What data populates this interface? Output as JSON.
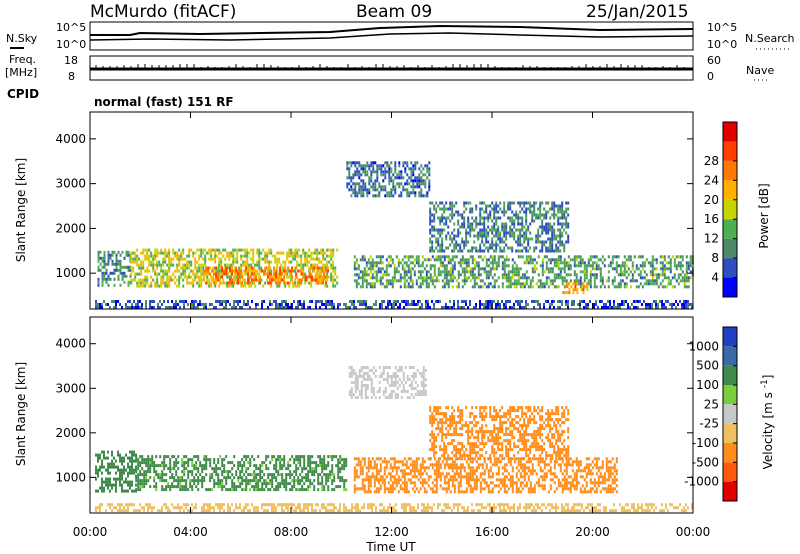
{
  "header": {
    "station": "McMurdo (fitACF)",
    "beam": "Beam 09",
    "date": "25/Jan/2015"
  },
  "top_panels": {
    "nsky_label": "N.Sky",
    "nsky_ticks": [
      "10^5",
      "10^0"
    ],
    "nsearch_label": "N.Search",
    "nsearch_ticks": [
      "10^5",
      "10^0"
    ],
    "freq_label_line1": "Freq.",
    "freq_label_line2": "[MHz]",
    "freq_ticks": [
      "18",
      "8"
    ],
    "nave_label": "Nave",
    "nave_ticks": [
      "60",
      "0"
    ],
    "cpid_label": "CPID",
    "cpid_text": "normal (fast) 151 RF"
  },
  "colors": {
    "power_scale": [
      "#0000ff",
      "#2f4ec0",
      "#4d8a68",
      "#4caf50",
      "#c8d400",
      "#ffb000",
      "#ff7a00",
      "#ff4000",
      "#e00000"
    ],
    "velocity_scale": [
      "#2040c0",
      "#3a6aa8",
      "#3f8a4a",
      "#7ccd3c",
      "#c8c8c8",
      "#f0c060",
      "#ff8c1a",
      "#ff5a10",
      "#e00000"
    ]
  },
  "chart_data": [
    {
      "type": "heatmap",
      "panel": "power",
      "ylabel": "Slant Range [km]",
      "xlabel": "Time UT",
      "x_ticks": [
        "00:00",
        "04:00",
        "08:00",
        "12:00",
        "16:00",
        "20:00",
        "00:00"
      ],
      "x_range_hours": [
        0,
        24
      ],
      "y_ticks": [
        1000,
        2000,
        3000,
        4000
      ],
      "ylim": [
        200,
        4600
      ],
      "colorbar": {
        "label": "Power [dB]",
        "ticks": [
          4,
          8,
          12,
          16,
          20,
          24,
          28
        ],
        "range": [
          0,
          32
        ]
      },
      "features": [
        {
          "t0": 0.2,
          "t1": 24,
          "r0": 250,
          "r1": 400,
          "value": 6
        },
        {
          "t0": 0.3,
          "t1": 1.6,
          "r0": 700,
          "r1": 1500,
          "value": 10
        },
        {
          "t0": 1.6,
          "t1": 9.8,
          "r0": 700,
          "r1": 1550,
          "value": 18
        },
        {
          "t0": 4.5,
          "t1": 9.5,
          "r0": 800,
          "r1": 1150,
          "value": 26
        },
        {
          "t0": 10.5,
          "t1": 24,
          "r0": 700,
          "r1": 1400,
          "value": 12
        },
        {
          "t0": 10.2,
          "t1": 13.5,
          "r0": 2700,
          "r1": 3500,
          "value": 8
        },
        {
          "t0": 13.5,
          "t1": 19,
          "r0": 1500,
          "r1": 2600,
          "value": 9
        },
        {
          "t0": 18.8,
          "t1": 19.8,
          "r0": 550,
          "r1": 800,
          "value": 24
        }
      ]
    },
    {
      "type": "heatmap",
      "panel": "velocity",
      "ylabel": "Slant Range [km]",
      "xlabel": "Time UT",
      "x_ticks": [
        "00:00",
        "04:00",
        "08:00",
        "12:00",
        "16:00",
        "20:00",
        "00:00"
      ],
      "x_range_hours": [
        0,
        24
      ],
      "y_ticks": [
        1000,
        2000,
        3000,
        4000
      ],
      "ylim": [
        200,
        4600
      ],
      "colorbar": {
        "label": "Velocity [m s^-1]",
        "ticks": [
          1000,
          500,
          100,
          25,
          -25,
          -100,
          -500,
          -1000
        ]
      },
      "features": [
        {
          "t0": 0.2,
          "t1": 1.8,
          "r0": 700,
          "r1": 1600,
          "value": 200
        },
        {
          "t0": 1.8,
          "t1": 10.2,
          "r0": 700,
          "r1": 1500,
          "value": 150
        },
        {
          "t0": 10.5,
          "t1": 21,
          "r0": 650,
          "r1": 1450,
          "value": -250
        },
        {
          "t0": 13.5,
          "t1": 19,
          "r0": 1400,
          "r1": 2600,
          "value": -200
        },
        {
          "t0": 10.3,
          "t1": 13.4,
          "r0": 2800,
          "r1": 3500,
          "value": 10
        },
        {
          "t0": 0.2,
          "t1": 24,
          "r0": 220,
          "r1": 420,
          "value": -60
        }
      ]
    }
  ]
}
